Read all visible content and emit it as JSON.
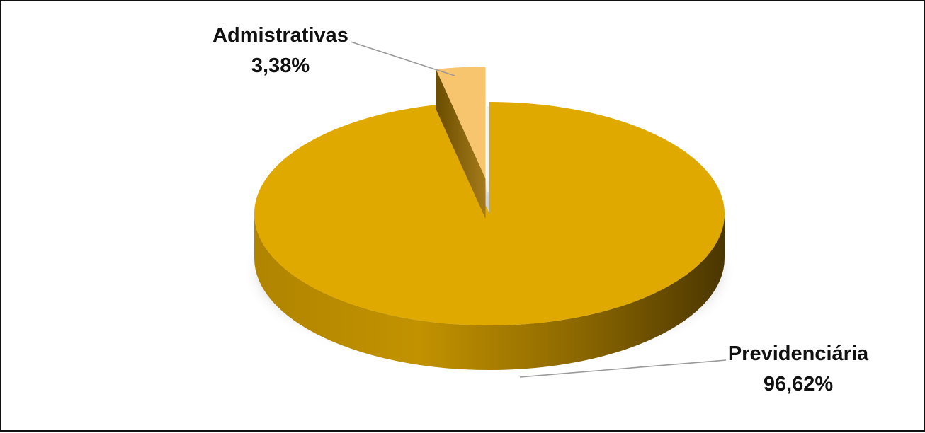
{
  "chart_data": {
    "type": "pie",
    "style": "3d",
    "exploded_slice": "Admistrativas",
    "slices": [
      {
        "name": "Previdenciária",
        "value": 96.62,
        "label": "Previdenciária",
        "value_label": "96,62%",
        "color": "#E0A900"
      },
      {
        "name": "Admistrativas",
        "value": 3.38,
        "label": "Admistrativas",
        "value_label": "3,38%",
        "color": "#F7C56E"
      }
    ],
    "legend": "none"
  }
}
